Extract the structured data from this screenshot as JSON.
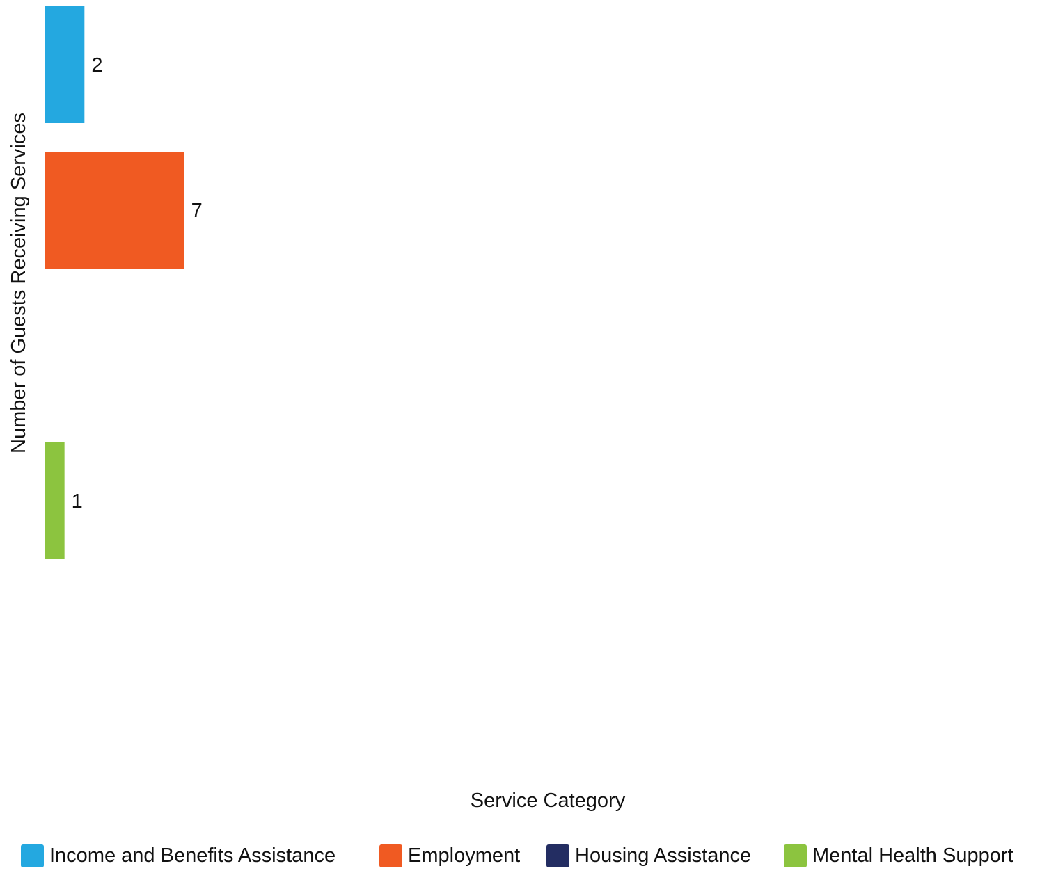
{
  "chart_data": {
    "type": "bar",
    "orientation": "horizontal",
    "xlabel": "Service Category",
    "ylabel": "Number of Guests Receiving Services",
    "categories": [
      "Income and Benefits Assistance",
      "Employment",
      "Housing Assistance",
      "Mental Health Support"
    ],
    "values": [
      2,
      7,
      0,
      1
    ],
    "data_labels": [
      "2",
      "7",
      "",
      "1"
    ],
    "colors": [
      "#24A8E0",
      "#F05A22",
      "#232D62",
      "#8CC43F"
    ],
    "xlim": [
      0,
      50
    ],
    "grid": false,
    "legend_position": "bottom"
  }
}
